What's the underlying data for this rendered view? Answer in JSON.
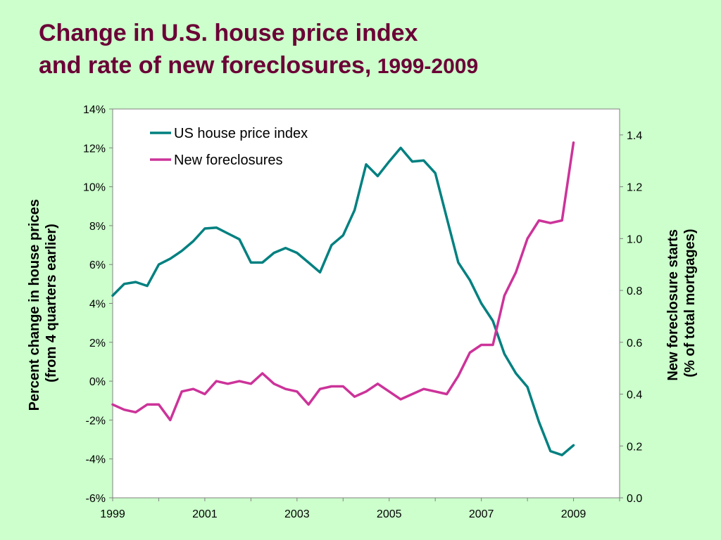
{
  "title": {
    "line1": "Change in U.S. house price index",
    "line2": "and rate of new foreclosures,",
    "years": " 1999-2009"
  },
  "colors": {
    "background": "#ccffcc",
    "title": "#6b0036",
    "hpi": "#008080",
    "foreclosures": "#cc3399"
  },
  "chart_data": {
    "type": "line",
    "title": "Change in U.S. house price index and rate of new foreclosures, 1999-2009",
    "xlabel": "",
    "ylabel": "Percent change in house prices (from 4 quarters earlier)",
    "ylabel_lines": [
      "Percent change in house prices",
      "(from 4 quarters earlier)"
    ],
    "y2label": "New foreclosure starts (% of total mortgages)",
    "y2label_lines": [
      "New foreclosure starts",
      "(% of total mortgages)"
    ],
    "xlim": [
      1999,
      2010
    ],
    "ylim": [
      -6,
      14
    ],
    "y2lim": [
      0,
      1.5
    ],
    "x_ticks": [
      "1999",
      "2001",
      "2003",
      "2005",
      "2007",
      "2009"
    ],
    "y_ticks": [
      "14%",
      "12%",
      "10%",
      "8%",
      "6%",
      "4%",
      "2%",
      "0%",
      "-2%",
      "-4%",
      "-6%"
    ],
    "y2_ticks": [
      "1.4",
      "1.2",
      "1.0",
      "0.8",
      "0.6",
      "0.4",
      "0.2",
      "0.0"
    ],
    "grid": false,
    "legend": "top-left",
    "x": [
      "1999 Q1",
      "1999 Q2",
      "1999 Q3",
      "1999 Q4",
      "2000 Q1",
      "2000 Q2",
      "2000 Q3",
      "2000 Q4",
      "2001 Q1",
      "2001 Q2",
      "2001 Q3",
      "2001 Q4",
      "2002 Q1",
      "2002 Q2",
      "2002 Q3",
      "2002 Q4",
      "2003 Q1",
      "2003 Q2",
      "2003 Q3",
      "2003 Q4",
      "2004 Q1",
      "2004 Q2",
      "2004 Q3",
      "2004 Q4",
      "2005 Q1",
      "2005 Q2",
      "2005 Q3",
      "2005 Q4",
      "2006 Q1",
      "2006 Q2",
      "2006 Q3",
      "2006 Q4",
      "2007 Q1",
      "2007 Q2",
      "2007 Q3",
      "2007 Q4",
      "2008 Q1",
      "2008 Q2",
      "2008 Q3",
      "2008 Q4",
      "2009 Q1"
    ],
    "series": [
      {
        "name": "US house price index",
        "axis": "left",
        "color": "#008080",
        "values": [
          4.4,
          5.0,
          5.1,
          4.9,
          6.0,
          6.3,
          6.7,
          7.2,
          7.85,
          7.9,
          7.6,
          7.3,
          6.1,
          6.1,
          6.6,
          6.85,
          6.6,
          6.1,
          5.6,
          7.0,
          7.5,
          8.8,
          11.15,
          10.55,
          11.3,
          12.0,
          11.3,
          11.35,
          10.7,
          8.4,
          6.1,
          5.2,
          4.0,
          3.1,
          1.4,
          0.4,
          -0.3,
          -2.1,
          -3.6,
          -3.8,
          -3.3
        ]
      },
      {
        "name": "New foreclosures",
        "axis": "right",
        "color": "#cc3399",
        "values": [
          0.36,
          0.34,
          0.33,
          0.36,
          0.36,
          0.3,
          0.41,
          0.42,
          0.4,
          0.45,
          0.44,
          0.45,
          0.44,
          0.48,
          0.44,
          0.42,
          0.41,
          0.36,
          0.42,
          0.43,
          0.43,
          0.39,
          0.41,
          0.44,
          0.41,
          0.38,
          0.4,
          0.42,
          0.41,
          0.4,
          0.47,
          0.56,
          0.59,
          0.59,
          0.78,
          0.87,
          1.0,
          1.07,
          1.06,
          1.07,
          1.37
        ]
      }
    ]
  }
}
